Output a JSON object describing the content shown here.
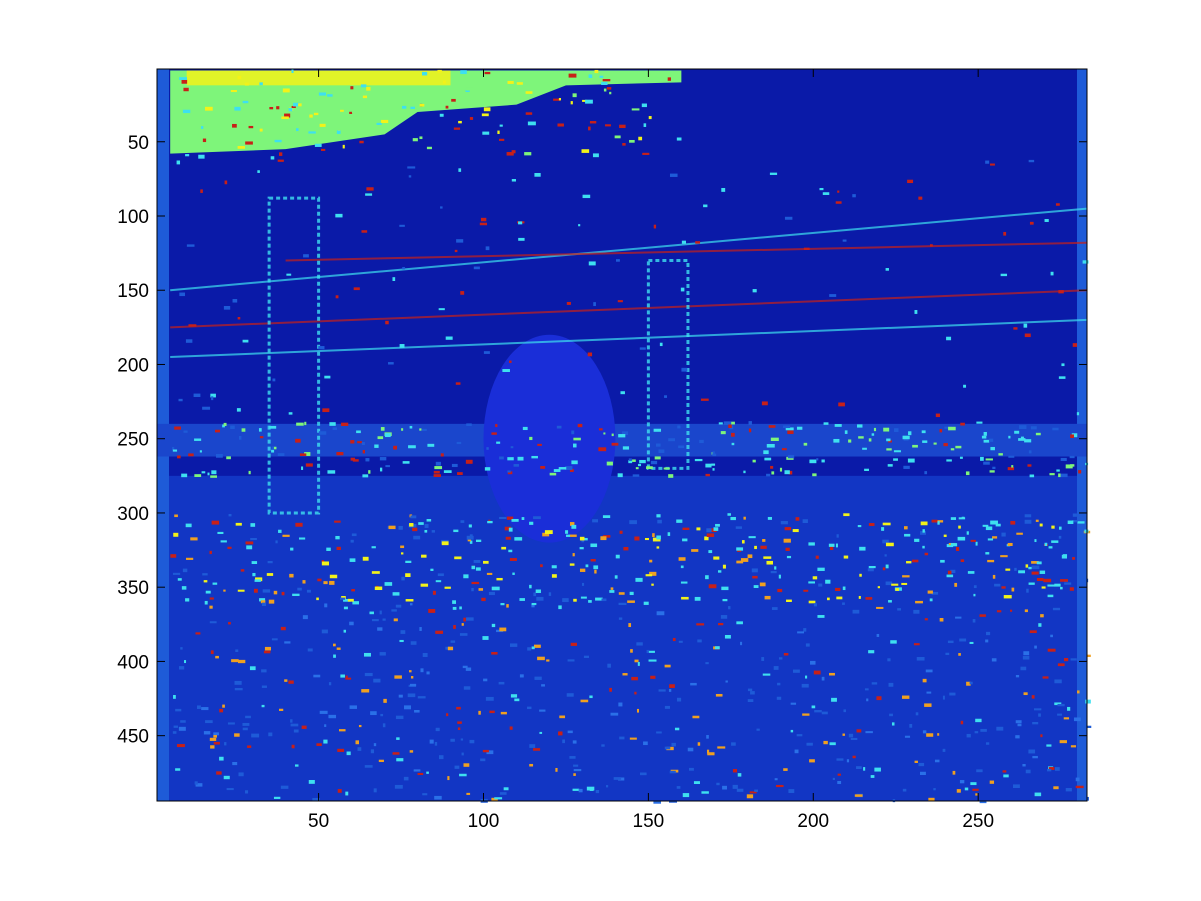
{
  "chart_data": {
    "type": "heatmap",
    "colormap": "jet",
    "title": "",
    "xlabel": "",
    "ylabel": "",
    "x_axis": {
      "range": [
        1,
        283
      ],
      "ticks": [
        50,
        100,
        150,
        200,
        250
      ],
      "tick_labels": [
        "50",
        "100",
        "150",
        "200",
        "250"
      ]
    },
    "y_axis": {
      "range": [
        1,
        494
      ],
      "reversed": true,
      "ticks": [
        50,
        100,
        150,
        200,
        250,
        300,
        350,
        400,
        450
      ],
      "tick_labels": [
        "50",
        "100",
        "150",
        "200",
        "250",
        "300",
        "350",
        "400",
        "450"
      ]
    },
    "grid": false,
    "colors": {
      "background_dark": "#0a1aa8",
      "mid_blue": "#1e5bd8",
      "cyan": "#3ee0f0",
      "light_green": "#7ef57a",
      "yellow": "#f2f21a",
      "orange": "#f0a020",
      "red": "#c82018",
      "axes_frame": "#000000",
      "figure_background": "#ffffff"
    },
    "regions": [
      {
        "name": "sky-bright-patch",
        "x": [
          5,
          160
        ],
        "y": [
          1,
          55
        ],
        "level": "light_green"
      },
      {
        "name": "sky-yellow-streak",
        "x": [
          10,
          90
        ],
        "y": [
          2,
          12
        ],
        "level": "yellow"
      },
      {
        "name": "sky",
        "x": [
          5,
          283
        ],
        "y": [
          55,
          240
        ],
        "level": "background_dark"
      },
      {
        "name": "horizon-band",
        "x": [
          5,
          283
        ],
        "y": [
          240,
          275
        ],
        "level": "cyan"
      },
      {
        "name": "field-noisy",
        "x": [
          5,
          283
        ],
        "y": [
          275,
          494
        ],
        "level": "mid_blue"
      },
      {
        "name": "figure-silhouette",
        "x": [
          100,
          140
        ],
        "y": [
          185,
          390
        ],
        "level": "mid_blue"
      }
    ]
  }
}
